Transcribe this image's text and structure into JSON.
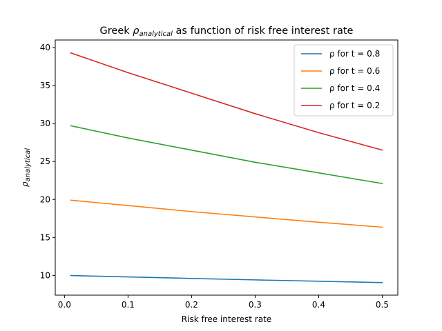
{
  "chart_data": {
    "type": "line",
    "title": {
      "prefix": "Greek ",
      "symbol": "ρ",
      "subscript": "analytical",
      "suffix": " as function of risk free interest rate"
    },
    "xlabel": "Risk free interest rate",
    "ylabel": {
      "symbol": "ρ",
      "subscript": "analytical"
    },
    "xlim": [
      -0.0145,
      0.5245
    ],
    "ylim": [
      7.4,
      41.0
    ],
    "xticks": [
      0.0,
      0.1,
      0.2,
      0.3,
      0.4,
      0.5
    ],
    "xtick_labels": [
      "0.0",
      "0.1",
      "0.2",
      "0.3",
      "0.4",
      "0.5"
    ],
    "yticks": [
      10,
      15,
      20,
      25,
      30,
      35,
      40
    ],
    "ytick_labels": [
      "10",
      "15",
      "20",
      "25",
      "30",
      "35",
      "40"
    ],
    "grid": false,
    "legend_position": "top-right",
    "x": [
      0.01,
      0.1,
      0.2,
      0.3,
      0.4,
      0.5
    ],
    "series": [
      {
        "name": "ρ for t = 0.8",
        "color": "#1f77b4",
        "values": [
          9.98,
          9.8,
          9.6,
          9.41,
          9.23,
          9.05
        ]
      },
      {
        "name": "ρ for t = 0.6",
        "color": "#ff7f0e",
        "values": [
          19.9,
          19.2,
          18.4,
          17.7,
          17.0,
          16.35
        ]
      },
      {
        "name": "ρ for t = 0.4",
        "color": "#2ca02c",
        "values": [
          29.7,
          28.1,
          26.5,
          24.9,
          23.5,
          22.1
        ]
      },
      {
        "name": "ρ for t = 0.2",
        "color": "#d62728",
        "values": [
          39.3,
          36.7,
          34.0,
          31.3,
          28.8,
          26.5
        ]
      }
    ]
  }
}
